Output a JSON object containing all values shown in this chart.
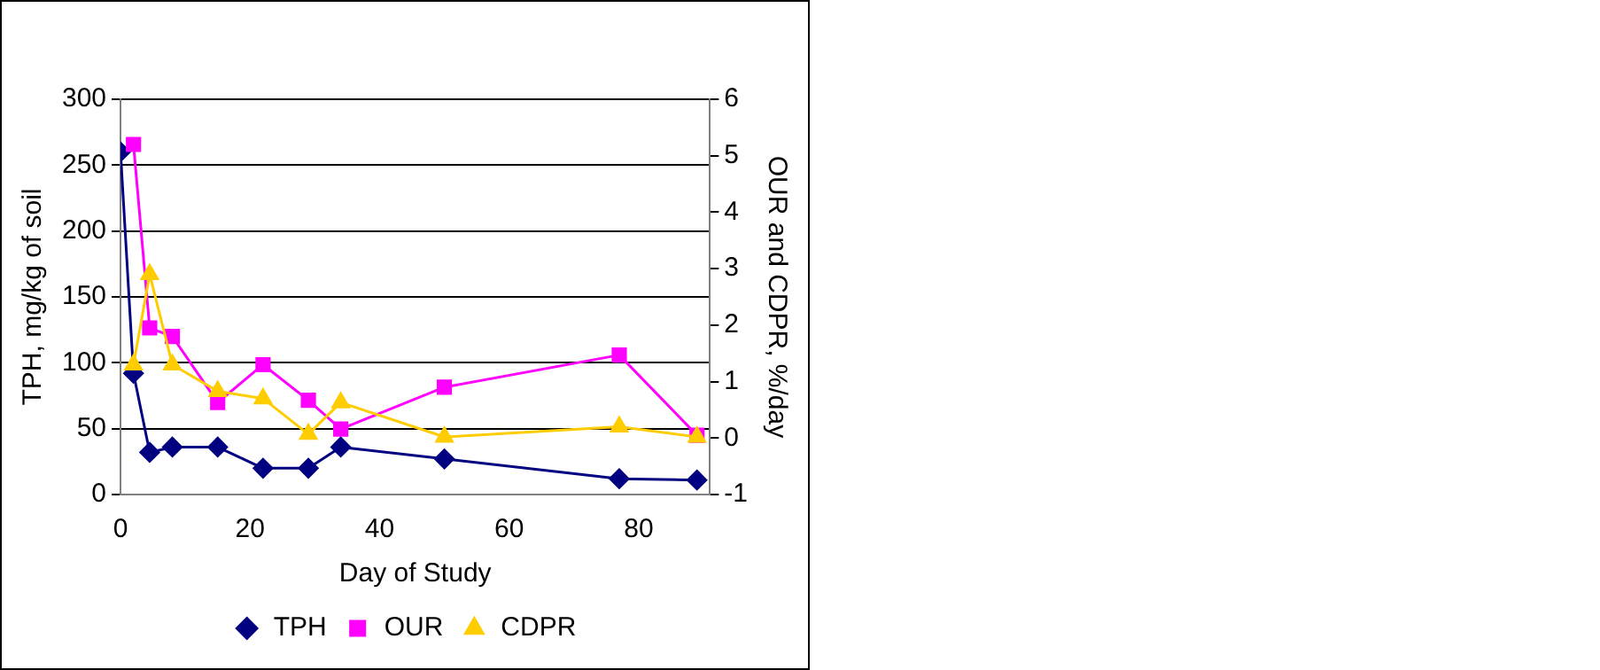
{
  "chart_data": {
    "type": "line",
    "xlabel": "Day of Study",
    "ylabel": "TPH, mg/kg of soil",
    "y2label": "OUR and CDPR, %/day",
    "xlim": [
      0,
      91
    ],
    "xticks": [
      0,
      20,
      40,
      60,
      80
    ],
    "ylim": [
      0,
      300
    ],
    "yticks": [
      0,
      50,
      100,
      150,
      200,
      250,
      300
    ],
    "y2lim": [
      -1,
      6
    ],
    "y2ticks": [
      -1,
      0,
      1,
      2,
      3,
      4,
      5,
      6
    ],
    "grid": "y",
    "legend": "bottom",
    "line_style": "solid",
    "series": [
      {
        "name": "TPH",
        "color": "#000080",
        "marker": "diamond",
        "x": [
          0,
          2,
          4.5,
          8,
          15,
          22,
          29,
          34,
          50,
          77,
          89
        ],
        "values": [
          260,
          92,
          32,
          36,
          36,
          20,
          20,
          36,
          27,
          12,
          11
        ]
      },
      {
        "name": "OUR",
        "color": "#ff00ff",
        "marker": "square",
        "axis": "y2",
        "x": [
          2,
          4.5,
          8,
          15,
          22,
          29,
          34,
          50,
          77,
          89
        ],
        "values": [
          5.2,
          1.95,
          1.8,
          0.63,
          1.3,
          0.67,
          0.16,
          0.9,
          1.47,
          0.05
        ]
      },
      {
        "name": "CDPR",
        "color": "#ffcc00",
        "marker": "triangle",
        "axis": "y2",
        "x": [
          2,
          4.5,
          8,
          15,
          22,
          29,
          34,
          50,
          77,
          89
        ],
        "values": [
          1.3,
          2.9,
          1.3,
          0.83,
          0.7,
          0.07,
          0.63,
          0.02,
          0.2,
          0.02
        ]
      }
    ]
  }
}
